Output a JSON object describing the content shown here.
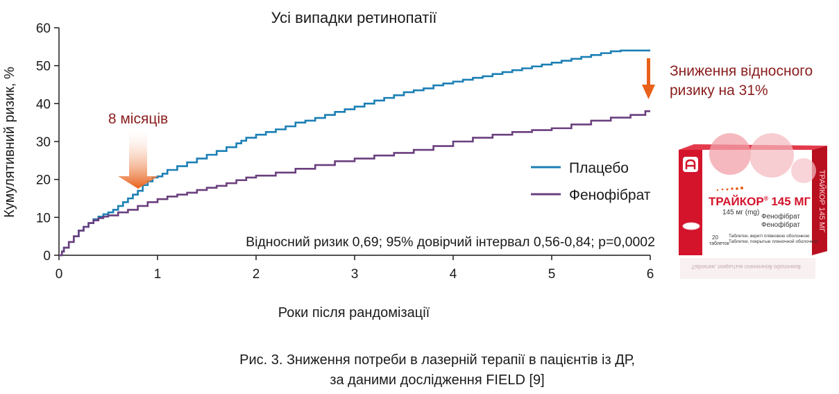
{
  "chart_data": {
    "type": "line",
    "title": "Усі випадки ретинопатії",
    "xlabel": "Роки після рандомізації",
    "ylabel": "Кумулятивний ризик, %",
    "xlim": [
      0,
      6
    ],
    "ylim": [
      0,
      60
    ],
    "xticks": [
      "0",
      "1",
      "2",
      "3",
      "4",
      "5",
      "6"
    ],
    "yticks": [
      "0",
      "10",
      "20",
      "30",
      "40",
      "50",
      "60"
    ],
    "grid": false,
    "legend_position": "right",
    "series": [
      {
        "name": "Плацебо",
        "color": "#1b7fb5",
        "x": [
          0,
          0.03,
          0.05,
          0.1,
          0.15,
          0.2,
          0.25,
          0.3,
          0.35,
          0.4,
          0.45,
          0.5,
          0.55,
          0.6,
          0.65,
          0.7,
          0.75,
          0.8,
          0.85,
          0.9,
          0.95,
          1.0,
          1.05,
          1.1,
          1.2,
          1.3,
          1.4,
          1.5,
          1.6,
          1.7,
          1.8,
          1.85,
          1.9,
          2.0,
          2.1,
          2.2,
          2.3,
          2.4,
          2.5,
          2.6,
          2.7,
          2.8,
          2.9,
          3.0,
          3.1,
          3.2,
          3.3,
          3.4,
          3.5,
          3.6,
          3.7,
          3.8,
          3.9,
          4.0,
          4.1,
          4.2,
          4.3,
          4.4,
          4.5,
          4.6,
          4.7,
          4.8,
          4.9,
          5.0,
          5.1,
          5.2,
          5.3,
          5.4,
          5.5,
          5.6,
          5.7,
          5.8,
          5.9,
          6.0
        ],
        "values": [
          0,
          1,
          2,
          3.5,
          5,
          6.5,
          7.5,
          8.5,
          9.5,
          10.2,
          10.8,
          11.3,
          12,
          13,
          14,
          15,
          16,
          17,
          18.5,
          19.5,
          20.5,
          20.8,
          21.5,
          22.5,
          23.5,
          24.5,
          25.5,
          26.5,
          27.5,
          28.5,
          29.5,
          30.2,
          31,
          31.8,
          32.5,
          33.2,
          34,
          35,
          35.5,
          36.2,
          37,
          37.8,
          38.5,
          39.2,
          40,
          40.8,
          41.5,
          42.2,
          43,
          43.5,
          44,
          44.8,
          45.3,
          45.8,
          46.3,
          46.8,
          47.2,
          47.8,
          48.3,
          48.8,
          49.3,
          49.8,
          50.3,
          50.8,
          51.3,
          51.8,
          52.3,
          52.8,
          53.3,
          53.8,
          54,
          54,
          54,
          54
        ]
      },
      {
        "name": "Фенофібрат",
        "color": "#6a3f7e",
        "x": [
          0,
          0.03,
          0.05,
          0.1,
          0.15,
          0.2,
          0.25,
          0.3,
          0.35,
          0.4,
          0.45,
          0.5,
          0.6,
          0.7,
          0.8,
          0.9,
          1.0,
          1.1,
          1.2,
          1.3,
          1.4,
          1.5,
          1.6,
          1.7,
          1.8,
          1.9,
          2.0,
          2.2,
          2.4,
          2.6,
          2.8,
          3.0,
          3.2,
          3.4,
          3.6,
          3.8,
          4.0,
          4.2,
          4.4,
          4.6,
          4.8,
          5.0,
          5.2,
          5.4,
          5.6,
          5.8,
          5.95,
          6.0
        ],
        "values": [
          0,
          1,
          2,
          3.5,
          5,
          6.5,
          7.5,
          8.5,
          9.2,
          9.8,
          10.2,
          10.5,
          11.3,
          12,
          13,
          14,
          14.8,
          15.5,
          16,
          16.5,
          17.2,
          17.8,
          18.3,
          19,
          19.8,
          20.5,
          21,
          21.8,
          22.8,
          23.8,
          24.8,
          25.5,
          26.3,
          27,
          27.8,
          28.8,
          30,
          31,
          31.8,
          32.5,
          33,
          33.5,
          34.5,
          35.5,
          36.3,
          37,
          38,
          38
        ]
      }
    ],
    "annotations": {
      "months_label": "8 місяців",
      "risk_reduction_line1": "Зниження відносного",
      "risk_reduction_line2": "ризику на 31%",
      "stats": "Відносний ризик 0,69; 95% довірчий інтервал 0,56-0,84; p=0,0002"
    },
    "arrow_color": "#e8611a"
  },
  "caption": {
    "line1": "Рис. 3. Зниження потреби в лазерній терапії в пацієнтів із ДР,",
    "line2": "за даними дослідження FIELD [9]"
  },
  "product": {
    "brand": "ТРАЙКОР",
    "reg_mark": "®",
    "dose_big": "145 МГ",
    "dose_small": "145 мг (mg)",
    "ingredient_1": "Фенофібрат",
    "ingredient_2": "Фенофібрат",
    "count_num": "20",
    "count_word": "таблеток",
    "desc_1": "Таблетки, вкриті плівковою оболонкою",
    "desc_2": "Таблетки, покрытые пленочной оболочкой",
    "side_text": "ТРАЙКОР 145 МГ",
    "reflection_text": "Таблетки, покрытые пленочной оболочкой",
    "primary_color": "#d3142b"
  }
}
